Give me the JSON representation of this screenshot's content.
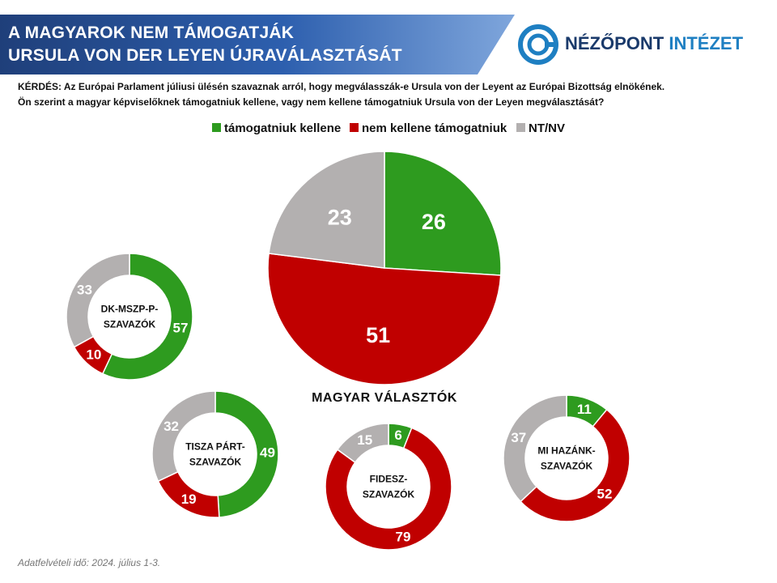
{
  "header": {
    "title_line1": "A MAGYAROK NEM TÁMOGATJÁK",
    "title_line2": "URSULA VON DER LEYEN ÚJRAVÁLASZTÁSÁT"
  },
  "logo": {
    "text_main": "NÉZŐPONT",
    "text_accent": "INTÉZET"
  },
  "question": {
    "line1": "KÉRDÉS: Az Európai Parlament júliusi ülésén szavaznak arról, hogy megválasszák-e Ursula von der Leyent az Európai Bizottság elnökének.",
    "line2": "Ön szerint a magyar képviselőknek támogatniuk kellene, vagy nem kellene támogatniuk Ursula von der Leyen megválasztását?"
  },
  "footnote": "Adatfelvételi idő: 2024. július 1-3.",
  "colors": {
    "support": "#2e9b1f",
    "oppose": "#c00000",
    "nt": "#b3b0b0",
    "banner": "#1f3f7a",
    "logo_blue": "#1e7fc2"
  },
  "chart_data": {
    "type": "pie",
    "legend": [
      "támogatniuk kellene",
      "nem kellene támogatniuk",
      "NT/NV"
    ],
    "legend_placement": "top-center",
    "charts": [
      {
        "label": "MAGYAR VÁLASZTÓK",
        "label_lines": [
          "MAGYAR VÁLASZTÓK"
        ],
        "style": "pie",
        "support": 26,
        "oppose": 51,
        "nt": 23
      },
      {
        "label": "DK-MSZP-P-SZAVAZÓK",
        "label_lines": [
          "DK-MSZP-P-",
          "SZAVAZÓK"
        ],
        "style": "donut",
        "support": 57,
        "oppose": 10,
        "nt": 33
      },
      {
        "label": "TISZA PÁRT-SZAVAZÓK",
        "label_lines": [
          "TISZA PÁRT-",
          "SZAVAZÓK"
        ],
        "style": "donut",
        "support": 49,
        "oppose": 19,
        "nt": 32
      },
      {
        "label": "FIDESZ-SZAVAZÓK",
        "label_lines": [
          "FIDESZ-",
          "SZAVAZÓK"
        ],
        "style": "donut",
        "support": 6,
        "oppose": 79,
        "nt": 15
      },
      {
        "label": "MI HAZÁNK-SZAVAZÓK",
        "label_lines": [
          "MI HAZÁNK-",
          "SZAVAZÓK"
        ],
        "style": "donut",
        "support": 11,
        "oppose": 52,
        "nt": 37
      }
    ]
  }
}
